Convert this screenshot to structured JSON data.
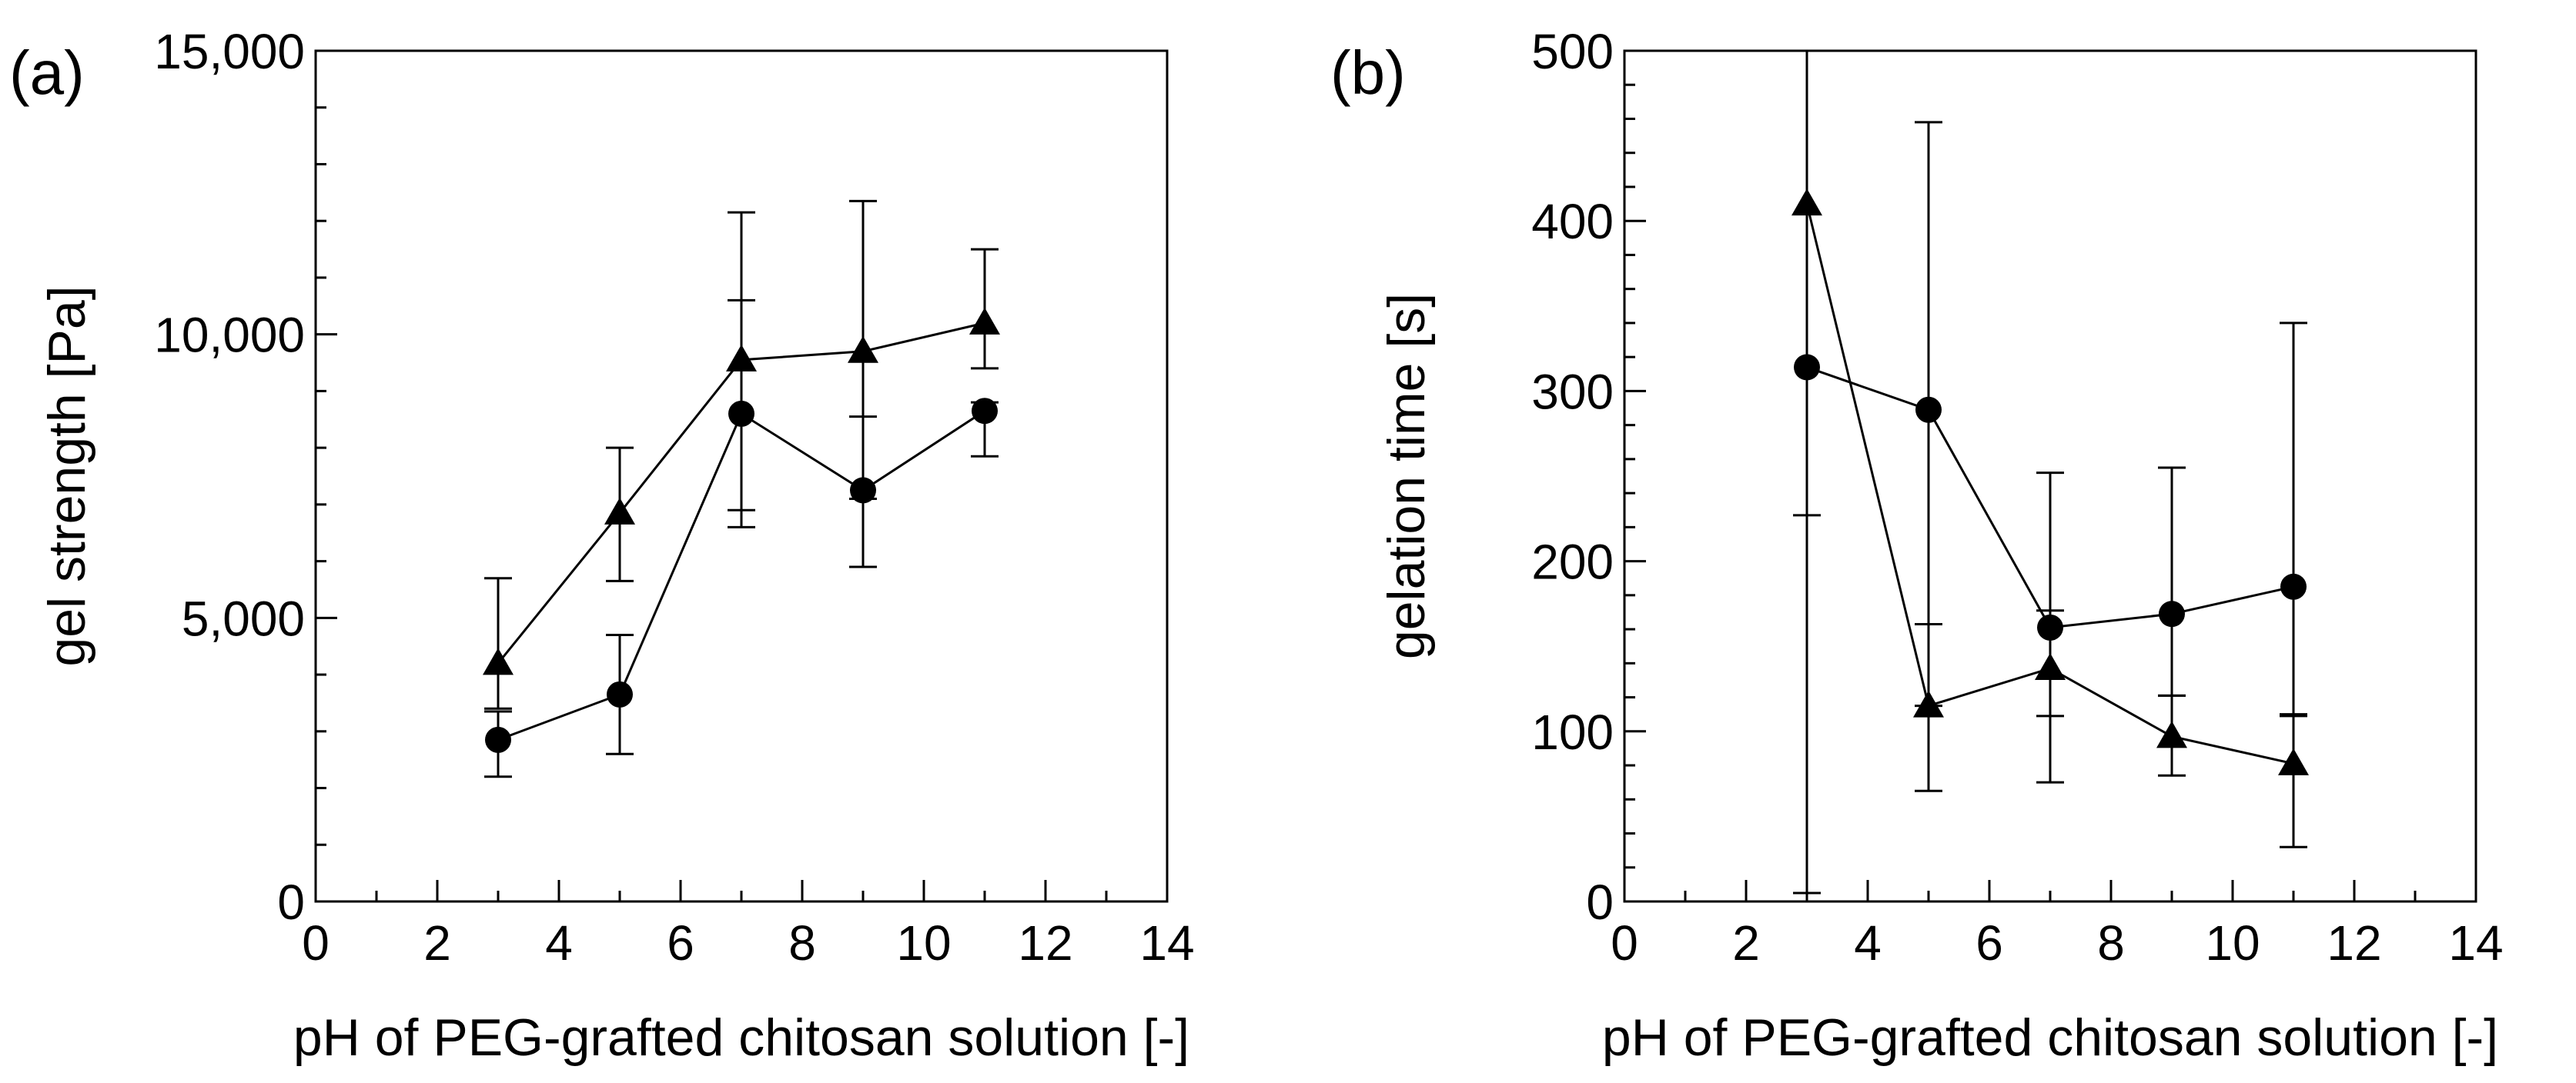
{
  "chart_data": [
    {
      "type": "line",
      "panel_label": "(a)",
      "xlabel": "pH of PEG-grafted chitosan solution [-]",
      "ylabel": "gel strength [Pa]",
      "xlim": [
        0,
        14
      ],
      "ylim": [
        0,
        15000
      ],
      "xticks": [
        0,
        2,
        4,
        6,
        8,
        10,
        12,
        14
      ],
      "xtick_labels": [
        "0",
        "2",
        "4",
        "6",
        "8",
        "10",
        "12",
        "14"
      ],
      "yticks": [
        0,
        5000,
        10000,
        15000
      ],
      "ytick_labels": [
        "0",
        "5,000",
        "10,000",
        "15,000"
      ],
      "x_minor_step": 1,
      "y_minor_step": 1000,
      "x": [
        3,
        5,
        7,
        9,
        11
      ],
      "series": [
        {
          "name": "triangle",
          "marker": "triangle",
          "values": [
            4200,
            6850,
            9550,
            9700,
            10200
          ],
          "err_low": [
            800,
            1200,
            2950,
            2600,
            800
          ],
          "err_high": [
            1500,
            1150,
            2600,
            2650,
            1300
          ]
        },
        {
          "name": "circle",
          "marker": "circle",
          "values": [
            2850,
            3650,
            8600,
            7250,
            8650
          ],
          "err_low": [
            650,
            1050,
            1700,
            1350,
            800
          ],
          "err_high": [
            500,
            1050,
            2000,
            1300,
            150
          ]
        }
      ]
    },
    {
      "type": "line",
      "panel_label": "(b)",
      "xlabel": "pH of PEG-grafted chitosan solution [-]",
      "ylabel": "gelation time  [s]",
      "xlim": [
        0,
        14
      ],
      "ylim": [
        0,
        500
      ],
      "xticks": [
        0,
        2,
        4,
        6,
        8,
        10,
        12,
        14
      ],
      "xtick_labels": [
        "0",
        "2",
        "4",
        "6",
        "8",
        "10",
        "12",
        "14"
      ],
      "yticks": [
        0,
        100,
        200,
        300,
        400,
        500
      ],
      "ytick_labels": [
        "0",
        "100",
        "200",
        "300",
        "400",
        "500"
      ],
      "x_minor_step": 1,
      "y_minor_step": 20,
      "x": [
        3,
        5,
        7,
        9,
        11
      ],
      "series": [
        {
          "name": "triangle",
          "marker": "triangle",
          "values": [
            410,
            115,
            137,
            97,
            81
          ],
          "err_low": [
            405,
            50,
            67,
            23,
            49
          ],
          "err_high": [
            90,
            48,
            34,
            24,
            29
          ]
        },
        {
          "name": "circle",
          "marker": "circle",
          "values": [
            314,
            289,
            161,
            169,
            185
          ],
          "err_low": [
            87,
            174,
            52,
            48,
            76
          ],
          "err_high": [
            90,
            169,
            91,
            86,
            155
          ]
        }
      ]
    }
  ]
}
